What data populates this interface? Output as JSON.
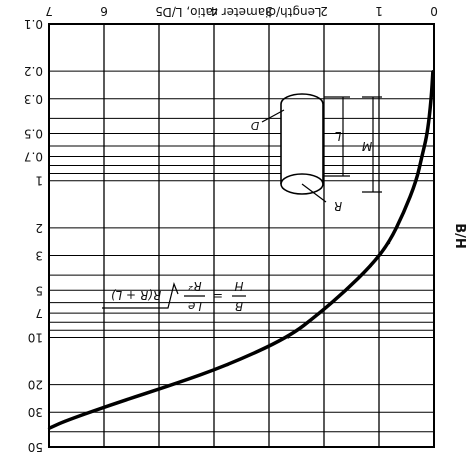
{
  "chart_data": {
    "type": "line",
    "orientation": "rotated-180",
    "title": "",
    "xlabel": "Length/diameter ratio, L/D",
    "ylabel": "B/H",
    "xlim": [
      0,
      7
    ],
    "ylim": [
      0.1,
      50
    ],
    "y_scale": "log",
    "grid": true,
    "x_ticks": [
      "0",
      "1",
      "2",
      "3",
      "4",
      "5",
      "6",
      "7"
    ],
    "y_ticks": [
      "0.1",
      "0.2",
      "0.3",
      "0.5",
      "0.7",
      "1",
      "2",
      "3",
      "5",
      "7",
      "10",
      "20",
      "30",
      "50"
    ],
    "series": [
      {
        "points": [
          {
            "x": 0.02,
            "y": 0.2
          },
          {
            "x": 0.05,
            "y": 0.3
          },
          {
            "x": 0.12,
            "y": 0.5
          },
          {
            "x": 0.22,
            "y": 0.7
          },
          {
            "x": 0.32,
            "y": 1.0
          },
          {
            "x": 0.55,
            "y": 1.6
          },
          {
            "x": 0.82,
            "y": 2.5
          },
          {
            "x": 1.15,
            "y": 3.5
          },
          {
            "x": 1.6,
            "y": 5.0
          },
          {
            "x": 2.08,
            "y": 7.0
          },
          {
            "x": 2.65,
            "y": 10
          },
          {
            "x": 3.75,
            "y": 15
          },
          {
            "x": 4.75,
            "y": 20
          },
          {
            "x": 5.75,
            "y": 26
          },
          {
            "x": 6.7,
            "y": 34
          },
          {
            "x": 7.0,
            "y": 38
          }
        ]
      }
    ],
    "annotations": {
      "formula": {
        "lhs_num": "B",
        "lhs_den": "H",
        "eq": "=",
        "rhs_num": "Le",
        "rhs_den": "R²",
        "sqrt_arg": "R(R + L)"
      },
      "cylinder_labels": {
        "diameter": "D",
        "length": "L",
        "distance": "M",
        "radius": "R"
      }
    }
  }
}
